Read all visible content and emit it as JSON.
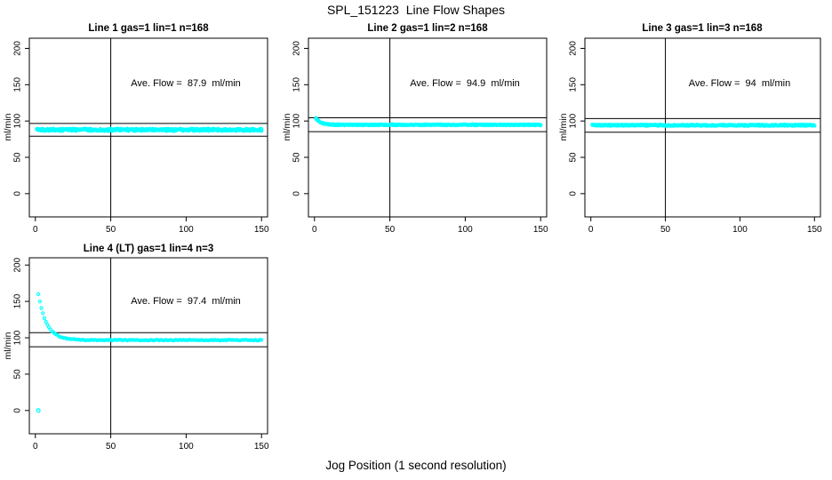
{
  "page": {
    "main_title": "SPL_151223  Line Flow Shapes",
    "x_axis_label": "Jog Position (1 second resolution)",
    "background_color": "#ffffff",
    "point_color": "#00ffff",
    "axis_color": "#000000"
  },
  "chart_data": [
    {
      "type": "scatter",
      "title": "Line 1 gas=1 lin=1 n=168",
      "ylabel": "ml/min",
      "annotation": "Ave. Flow =  87.9  ml/min",
      "ave_flow_ml_min": 87.9,
      "n_runs": 168,
      "limit_lines": [
        96.7,
        79.1
      ],
      "vline_x": 50,
      "x_ticks": [
        0,
        50,
        100,
        150
      ],
      "y_ticks": [
        0,
        50,
        100,
        150,
        200
      ],
      "xlim": [
        -4,
        154
      ],
      "ylim": [
        -32,
        214
      ],
      "grid": false,
      "series": {
        "x_start": 1,
        "x_end": 150,
        "x_step": 1,
        "start_value": 88.2,
        "plateau": 87.9,
        "decay_tau": 1.5,
        "noise_amplitude": 1.7,
        "density_passes": 3
      },
      "extra_points": []
    },
    {
      "type": "scatter",
      "title": "Line 2 gas=1 lin=2 n=168",
      "ylabel": "ml/min",
      "annotation": "Ave. Flow =  94.9  ml/min",
      "ave_flow_ml_min": 94.9,
      "n_runs": 168,
      "limit_lines": [
        104.4,
        85.4
      ],
      "vline_x": 50,
      "x_ticks": [
        0,
        50,
        100,
        150
      ],
      "y_ticks": [
        0,
        50,
        100,
        150,
        200
      ],
      "xlim": [
        -4,
        154
      ],
      "ylim": [
        -32,
        214
      ],
      "grid": false,
      "series": {
        "x_start": 1,
        "x_end": 150,
        "x_step": 1,
        "start_value": 103.5,
        "plateau": 94.8,
        "decay_tau": 3.2,
        "noise_amplitude": 0.75,
        "density_passes": 3
      },
      "extra_points": []
    },
    {
      "type": "scatter",
      "title": "Line 3 gas=1 lin=3 n=168",
      "ylabel": "ml/min",
      "annotation": "Ave. Flow =  94  ml/min",
      "ave_flow_ml_min": 94,
      "n_runs": 168,
      "limit_lines": [
        103.4,
        84.6
      ],
      "vline_x": 50,
      "x_ticks": [
        0,
        50,
        100,
        150
      ],
      "y_ticks": [
        0,
        50,
        100,
        150,
        200
      ],
      "xlim": [
        -4,
        154
      ],
      "ylim": [
        -32,
        214
      ],
      "grid": false,
      "series": {
        "x_start": 1,
        "x_end": 150,
        "x_step": 1,
        "start_value": 95.5,
        "plateau": 94.2,
        "decay_tau": 2.0,
        "noise_amplitude": 1.0,
        "density_passes": 3
      },
      "extra_points": []
    },
    {
      "type": "scatter",
      "title": "Line 4 (LT) gas=1 lin=4 n=3",
      "ylabel": "ml/min",
      "annotation": "Ave. Flow =  97.4  ml/min",
      "ave_flow_ml_min": 97.4,
      "n_runs": 3,
      "limit_lines": [
        107.1,
        87.7
      ],
      "vline_x": 50,
      "x_ticks": [
        0,
        50,
        100,
        150
      ],
      "y_ticks": [
        0,
        50,
        100,
        150,
        200
      ],
      "xlim": [
        -4,
        154
      ],
      "ylim": [
        -32,
        210
      ],
      "grid": false,
      "series": {
        "x_start": 2,
        "x_end": 150,
        "x_step": 1,
        "start_value": 160,
        "plateau": 96.8,
        "decay_tau": 5.5,
        "noise_amplitude": 0.6,
        "density_passes": 1
      },
      "extra_points": [
        [
          2,
          0
        ]
      ]
    }
  ]
}
